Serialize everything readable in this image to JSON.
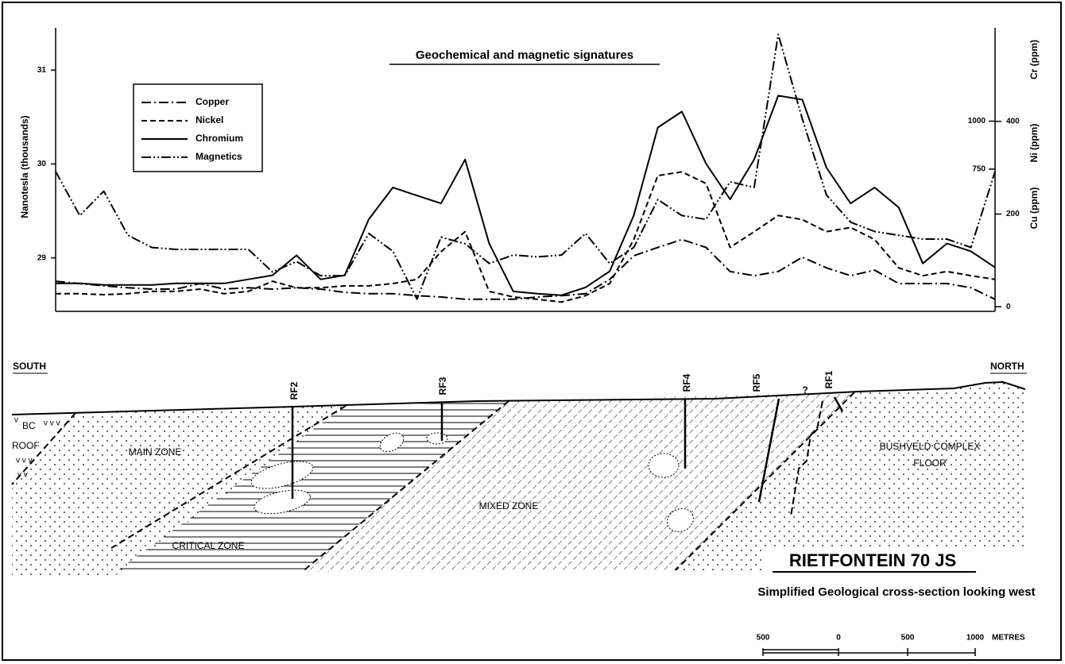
{
  "chart_data": {
    "type": "line",
    "title": "Geochemical and magnetic signatures",
    "y_label": "Nanotesla (thousands)",
    "y2_labels": [
      "Cr (ppm)",
      "Ni (ppm)",
      "Cu (ppm)"
    ],
    "ylim": [
      28.43,
      31.45
    ],
    "yticks": [
      29,
      30,
      31
    ],
    "y2lim": [
      -10,
      602
    ],
    "y2ticks": [
      0,
      200,
      400
    ],
    "y3lim": [
      8,
      1487
    ],
    "y3ticks": [
      750,
      1000
    ],
    "categories": [
      null,
      null,
      null,
      null,
      null,
      null,
      null,
      null,
      null,
      null,
      null,
      null,
      null,
      null,
      null,
      null,
      null,
      null,
      null,
      null,
      null,
      null,
      null,
      null,
      null,
      null,
      null,
      null,
      null,
      null,
      null,
      null,
      null,
      null,
      null,
      null,
      null,
      null,
      null,
      null
    ],
    "series": [
      {
        "name": "Copper",
        "color": "#000000",
        "dash": "dashdot",
        "axis": "y2",
        "values": [
          55,
          50,
          45,
          41,
          38,
          38,
          50,
          38,
          41,
          38,
          41,
          38,
          31,
          28,
          28,
          24,
          21,
          16,
          16,
          16,
          21,
          24,
          28,
          59,
          110,
          128,
          145,
          128,
          76,
          67,
          76,
          107,
          84,
          67,
          79,
          50,
          50,
          50,
          41,
          16
        ]
      },
      {
        "name": "Nickel",
        "color": "#000000",
        "dash": "dashed",
        "axis": "y2",
        "values": [
          28,
          28,
          26,
          28,
          33,
          33,
          38,
          28,
          33,
          55,
          41,
          41,
          45,
          45,
          50,
          59,
          119,
          162,
          33,
          21,
          16,
          10,
          24,
          50,
          145,
          283,
          291,
          266,
          128,
          162,
          197,
          188,
          162,
          171,
          145,
          84,
          67,
          76,
          67,
          59
        ]
      },
      {
        "name": "Chromium",
        "color": "#000000",
        "dash": "solid",
        "axis": "y3",
        "values": [
          154,
          154,
          146,
          146,
          146,
          154,
          154,
          154,
          175,
          196,
          300,
          175,
          196,
          488,
          654,
          612,
          571,
          800,
          362,
          112,
          100,
          92,
          133,
          217,
          508,
          967,
          1050,
          779,
          592,
          800,
          1133,
          1112,
          758,
          571,
          654,
          550,
          258,
          362,
          321,
          237
        ]
      },
      {
        "name": "Magnetics",
        "color": "#000000",
        "dash": "dashdotdot",
        "axis": "y",
        "values": [
          29.92,
          29.45,
          29.71,
          29.24,
          29.11,
          29.09,
          29.09,
          29.09,
          29.09,
          28.85,
          28.96,
          28.81,
          28.81,
          29.26,
          29.07,
          28.56,
          29.22,
          29.15,
          28.94,
          29.03,
          29.01,
          29.03,
          29.26,
          28.94,
          29.11,
          29.62,
          29.45,
          29.41,
          29.81,
          29.75,
          31.38,
          30.48,
          29.67,
          29.38,
          29.28,
          29.24,
          29.2,
          29.2,
          29.11,
          29.92
        ]
      }
    ]
  },
  "section": {
    "south": "SOUTH",
    "north": "NORTH",
    "holes": [
      "RF2",
      "RF3",
      "RF4",
      "RF5",
      "?",
      "RF1"
    ],
    "bc": "BC",
    "roof": "ROOF",
    "main_zone": "MAIN ZONE",
    "critical_zone": "CRITICAL ZONE",
    "mixed_zone": "MIXED ZONE",
    "floor": [
      "BUSHVELD COMPLEX",
      "FLOOR"
    ],
    "title": "RIETFONTEIN 70 JS",
    "subtitle": "Simplified Geological cross-section looking west",
    "scale": [
      500,
      0,
      500,
      1000
    ],
    "scale_unit": "METRES"
  }
}
